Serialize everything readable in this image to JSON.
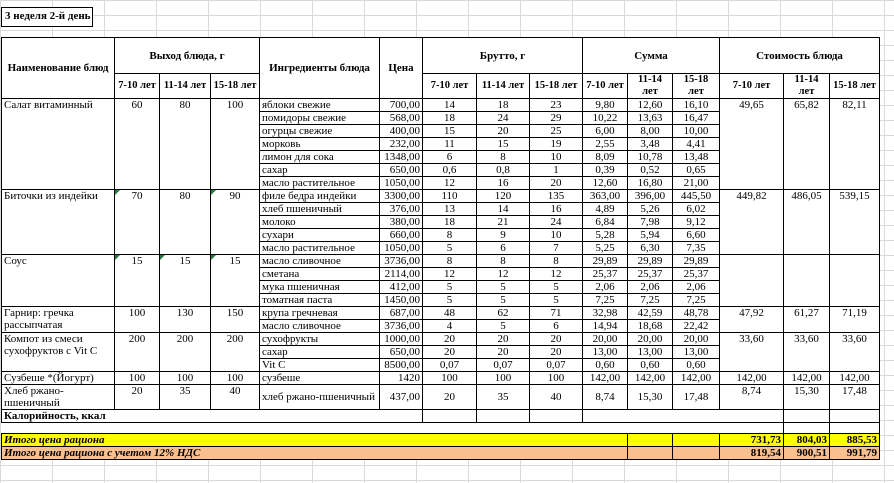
{
  "sheet": {
    "title": "3 неделя 2-й день"
  },
  "header": {
    "name": "Наименование блюд",
    "output": "Выход блюда, г",
    "ingredients": "Ингредиенты блюда",
    "price": "Цена",
    "brutto": "Брутто, г",
    "sum": "Сумма",
    "dish_cost": "Стоимость блюда",
    "age_groups": [
      "7-10 лет",
      "11-14 лет",
      "15-18 лет"
    ]
  },
  "dishes": [
    {
      "name": "Салат витаминный",
      "output": [
        "60",
        "80",
        "100"
      ],
      "marks": [
        false,
        false,
        false
      ],
      "cost": [
        "49,65",
        "65,82",
        "82,11"
      ],
      "ingredients": [
        {
          "name": "яблоки свежие",
          "price": "700,00",
          "brutto": [
            "14",
            "18",
            "23"
          ],
          "sum": [
            "9,80",
            "12,60",
            "16,10"
          ]
        },
        {
          "name": "помидоры свежие",
          "price": "568,00",
          "brutto": [
            "18",
            "24",
            "29"
          ],
          "sum": [
            "10,22",
            "13,63",
            "16,47"
          ]
        },
        {
          "name": "огурцы свежие",
          "price": "400,00",
          "brutto": [
            "15",
            "20",
            "25"
          ],
          "sum": [
            "6,00",
            "8,00",
            "10,00"
          ]
        },
        {
          "name": "морковь",
          "price": "232,00",
          "brutto": [
            "11",
            "15",
            "19"
          ],
          "sum": [
            "2,55",
            "3,48",
            "4,41"
          ]
        },
        {
          "name": "лимон для сока",
          "price": "1348,00",
          "brutto": [
            "6",
            "8",
            "10"
          ],
          "sum": [
            "8,09",
            "10,78",
            "13,48"
          ]
        },
        {
          "name": "сахар",
          "price": "650,00",
          "brutto": [
            "0,6",
            "0,8",
            "1"
          ],
          "sum": [
            "0,39",
            "0,52",
            "0,65"
          ]
        },
        {
          "name": "масло растительное",
          "price": "1050,00",
          "brutto": [
            "12",
            "16",
            "20"
          ],
          "sum": [
            "12,60",
            "16,80",
            "21,00"
          ]
        }
      ]
    },
    {
      "name": "Биточки из индейки",
      "output": [
        "70",
        "80",
        "90"
      ],
      "marks": [
        true,
        false,
        true
      ],
      "cost": [
        "449,82",
        "486,05",
        "539,15"
      ],
      "ingredients": [
        {
          "name": "филе бедра индейки",
          "price": "3300,00",
          "brutto": [
            "110",
            "120",
            "135"
          ],
          "sum": [
            "363,00",
            "396,00",
            "445,50"
          ]
        },
        {
          "name": "хлеб пшеничный",
          "price": "376,00",
          "brutto": [
            "13",
            "14",
            "16"
          ],
          "sum": [
            "4,89",
            "5,26",
            "6,02"
          ]
        },
        {
          "name": "молоко",
          "price": "380,00",
          "brutto": [
            "18",
            "21",
            "24"
          ],
          "sum": [
            "6,84",
            "7,98",
            "9,12"
          ]
        },
        {
          "name": "сухари",
          "price": "660,00",
          "brutto": [
            "8",
            "9",
            "10"
          ],
          "sum": [
            "5,28",
            "5,94",
            "6,60"
          ]
        },
        {
          "name": "масло растительное",
          "price": "1050,00",
          "brutto": [
            "5",
            "6",
            "7"
          ],
          "sum": [
            "5,25",
            "6,30",
            "7,35"
          ]
        }
      ]
    },
    {
      "name": "Соус",
      "output": [
        "15",
        "15",
        "15"
      ],
      "marks": [
        true,
        true,
        true
      ],
      "cost": [
        "",
        "",
        ""
      ],
      "ingredients": [
        {
          "name": "масло сливочное",
          "price": "3736,00",
          "brutto": [
            "8",
            "8",
            "8"
          ],
          "sum": [
            "29,89",
            "29,89",
            "29,89"
          ]
        },
        {
          "name": "сметана",
          "price": "2114,00",
          "brutto": [
            "12",
            "12",
            "12"
          ],
          "sum": [
            "25,37",
            "25,37",
            "25,37"
          ]
        },
        {
          "name": "мука пшеничная",
          "price": "412,00",
          "brutto": [
            "5",
            "5",
            "5"
          ],
          "sum": [
            "2,06",
            "2,06",
            "2,06"
          ]
        },
        {
          "name": "томатная паста",
          "price": "1450,00",
          "brutto": [
            "5",
            "5",
            "5"
          ],
          "sum": [
            "7,25",
            "7,25",
            "7,25"
          ]
        }
      ]
    },
    {
      "name": "Гарнир: гречка рассыпчатая",
      "output": [
        "100",
        "130",
        "150"
      ],
      "marks": [
        false,
        false,
        false
      ],
      "cost": [
        "47,92",
        "61,27",
        "71,19"
      ],
      "ingredients": [
        {
          "name": "крупа гречневая",
          "price": "687,00",
          "brutto": [
            "48",
            "62",
            "71"
          ],
          "sum": [
            "32,98",
            "42,59",
            "48,78"
          ]
        },
        {
          "name": "масло сливочное",
          "price": "3736,00",
          "brutto": [
            "4",
            "5",
            "6"
          ],
          "sum": [
            "14,94",
            "18,68",
            "22,42"
          ]
        }
      ]
    },
    {
      "name": "Компот из смеси сухофруктов с Vit C",
      "output": [
        "200",
        "200",
        "200"
      ],
      "marks": [
        false,
        false,
        false
      ],
      "cost": [
        "33,60",
        "33,60",
        "33,60"
      ],
      "ingredients": [
        {
          "name": "сухофрукты",
          "price": "1000,00",
          "brutto": [
            "20",
            "20",
            "20"
          ],
          "sum": [
            "20,00",
            "20,00",
            "20,00"
          ]
        },
        {
          "name": "сахар",
          "price": "650,00",
          "brutto": [
            "20",
            "20",
            "20"
          ],
          "sum": [
            "13,00",
            "13,00",
            "13,00"
          ]
        },
        {
          "name": "Vit C",
          "price": "8500,00",
          "brutto": [
            "0,07",
            "0,07",
            "0,07"
          ],
          "sum": [
            "0,60",
            "0,60",
            "0,60"
          ]
        }
      ]
    },
    {
      "name": "Сузбеше *(Йогурт)",
      "output": [
        "100",
        "100",
        "100"
      ],
      "marks": [
        false,
        false,
        false
      ],
      "cost": [
        "142,00",
        "142,00",
        "142,00"
      ],
      "ingredients": [
        {
          "name": "сузбеше",
          "price": "1420",
          "brutto": [
            "100",
            "100",
            "100"
          ],
          "sum": [
            "142,00",
            "142,00",
            "142,00"
          ]
        }
      ]
    },
    {
      "name": "Хлеб ржано-пшеничный",
      "output": [
        "20",
        "35",
        "40"
      ],
      "marks": [
        false,
        false,
        false
      ],
      "cost": [
        "8,74",
        "15,30",
        "17,48"
      ],
      "ingredients": [
        {
          "name": "хлеб ржано-пшеничный",
          "price": "437,00",
          "brutto": [
            "20",
            "35",
            "40"
          ],
          "sum": [
            "8,74",
            "15,30",
            "17,48"
          ]
        }
      ]
    }
  ],
  "calories_row": {
    "label": "Калорийность, ккал"
  },
  "totals": [
    {
      "label": "Итого цена рациона",
      "values": [
        "731,73",
        "804,03",
        "885,53"
      ],
      "color": "#FFFF00"
    },
    {
      "label": "Итого цена рациона с учетом 12% НДС",
      "values": [
        "819,54",
        "900,51",
        "991,79"
      ],
      "color": "#FABF8F"
    }
  ],
  "colors": {
    "total_row_bg": "#FFFF00",
    "vat_row_bg": "#FABF8F",
    "grid_line": "#D9D9D9",
    "table_border": "#000000",
    "error_indicator": "#1E7A41"
  }
}
